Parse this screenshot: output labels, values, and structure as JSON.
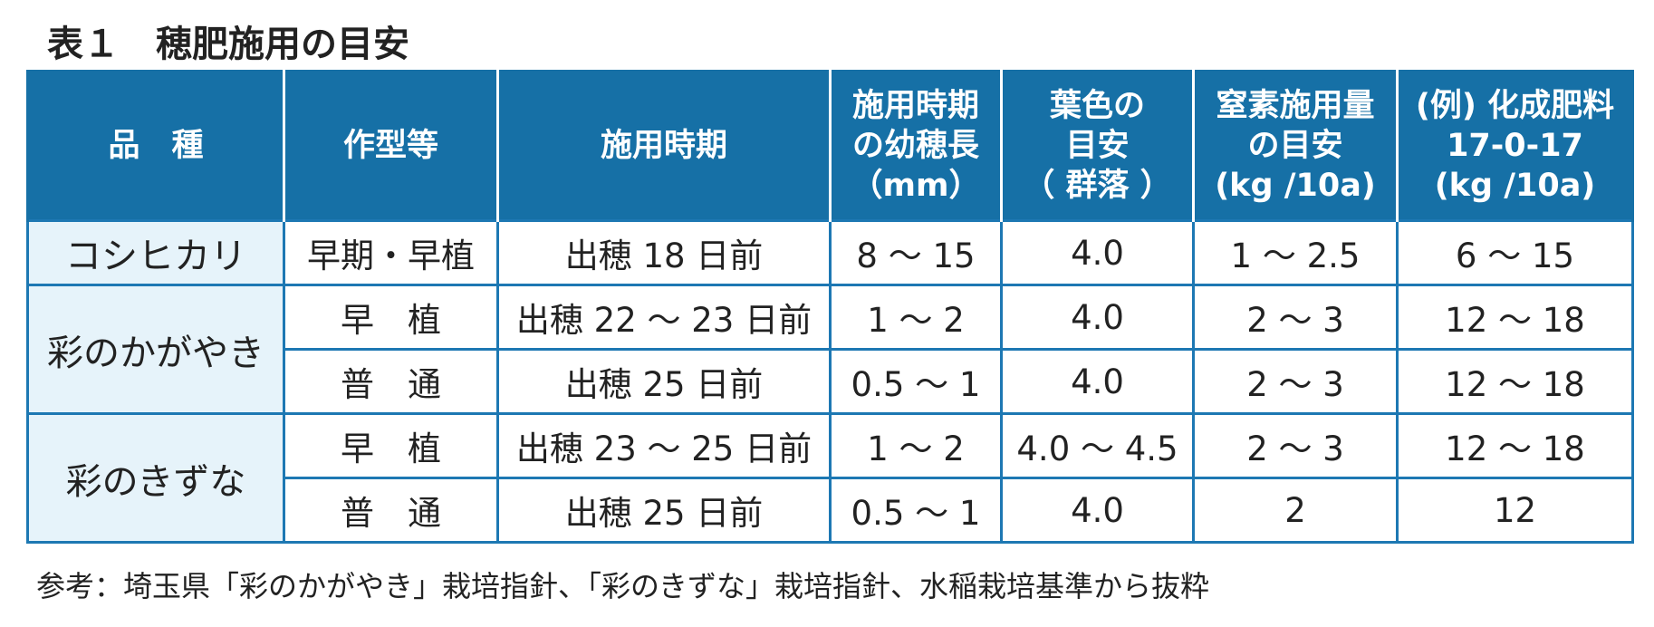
{
  "title": "表１　穂肥施用の目安",
  "table": {
    "header": [
      [
        "品　種"
      ],
      [
        "作型等"
      ],
      [
        "施用時期"
      ],
      [
        "施用時期",
        "の幼穂長",
        "（mm）"
      ],
      [
        "葉色の",
        "目安",
        "（ 群落 ）"
      ],
      [
        "窒素施用量",
        "の目安",
        "(kg /10a)"
      ],
      [
        "(例) 化成肥料",
        "17-0-17",
        "(kg /10a)"
      ]
    ],
    "groups": [
      {
        "variety": "コシヒカリ",
        "rows": [
          [
            "早期・早植",
            "出穂 18 日前",
            "8 ～ 15",
            "4.0",
            "1 ～ 2.5",
            "6 ～ 15"
          ]
        ]
      },
      {
        "variety": "彩のかがやき",
        "rows": [
          [
            "早　植",
            "出穂 22 ～ 23 日前",
            "1 ～ 2",
            "4.0",
            "2 ～ 3",
            "12 ～ 18"
          ],
          [
            "普　通",
            "出穂 25 日前",
            "0.5 ～ 1",
            "4.0",
            "2 ～ 3",
            "12 ～ 18"
          ]
        ]
      },
      {
        "variety": "彩のきずな",
        "rows": [
          [
            "早　植",
            "出穂 23 ～ 25 日前",
            "1 ～ 2",
            "4.0 ～ 4.5",
            "2 ～ 3",
            "12 ～ 18"
          ],
          [
            "普　通",
            "出穂 25 日前",
            "0.5 ～ 1",
            "4.0",
            "2",
            "12"
          ]
        ]
      }
    ]
  },
  "footnote": "参考：埼玉県「彩のかがやき」栽培指針、「彩のきずな」栽培指針、水稲栽培基準から抜粋"
}
